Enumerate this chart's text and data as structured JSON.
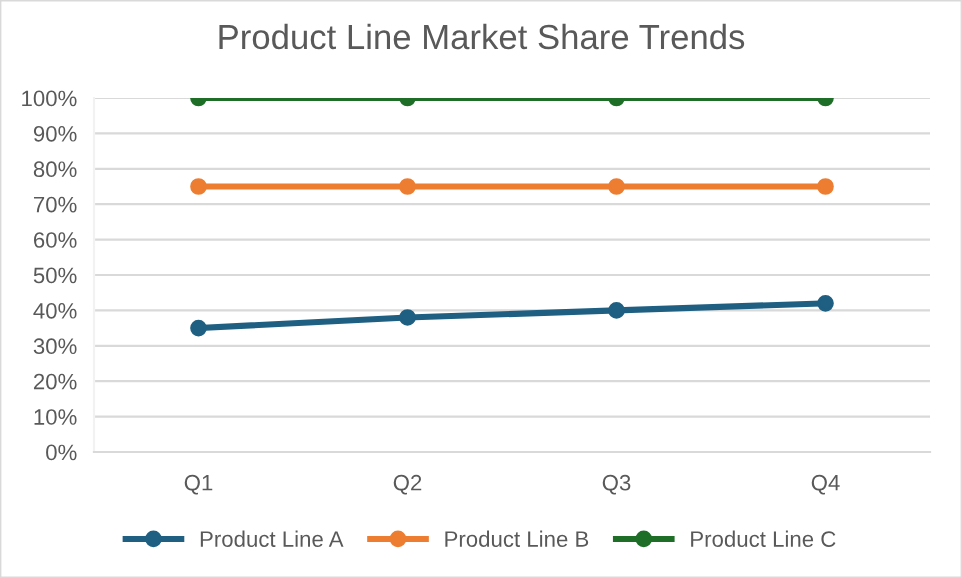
{
  "chart_data": {
    "type": "line",
    "title": "Product Line Market Share Trends",
    "categories": [
      "Q1",
      "Q2",
      "Q3",
      "Q4"
    ],
    "series": [
      {
        "name": "Product Line A",
        "color": "#1f5f82",
        "values": [
          35,
          38,
          40,
          42
        ]
      },
      {
        "name": "Product Line B",
        "color": "#ed7d31",
        "values": [
          75,
          75,
          75,
          75
        ]
      },
      {
        "name": "Product Line C",
        "color": "#1e6e27",
        "values": [
          100,
          100,
          100,
          100
        ]
      }
    ],
    "ylim": [
      0,
      100
    ],
    "yticks": [
      {
        "value": 0,
        "label": "0%"
      },
      {
        "value": 10,
        "label": "10%"
      },
      {
        "value": 20,
        "label": "20%"
      },
      {
        "value": 30,
        "label": "30%"
      },
      {
        "value": 40,
        "label": "40%"
      },
      {
        "value": 50,
        "label": "50%"
      },
      {
        "value": 60,
        "label": "60%"
      },
      {
        "value": 70,
        "label": "70%"
      },
      {
        "value": 80,
        "label": "80%"
      },
      {
        "value": 90,
        "label": "90%"
      },
      {
        "value": 100,
        "label": "100%"
      }
    ],
    "grid": "y",
    "legend": "bottom",
    "marker": "circle",
    "line_style": "solid"
  }
}
